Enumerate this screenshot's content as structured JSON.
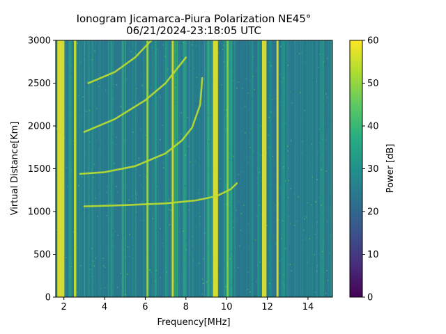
{
  "chart_data": {
    "type": "heatmap",
    "title_line1": "Ionogram Jicamarca-Piura Polarization NE45°",
    "title_line2": "06/21/2024-23:18:05 UTC",
    "xlabel": "Frequency[MHz]",
    "ylabel": "Virtual Distance[Km]",
    "xlim": [
      1.6,
      15.2
    ],
    "ylim": [
      0,
      3000
    ],
    "x_ticks": [
      2,
      4,
      6,
      8,
      10,
      12,
      14
    ],
    "y_ticks": [
      0,
      500,
      1000,
      1500,
      2000,
      2500,
      3000
    ],
    "colorbar": {
      "label": "Power [dB]",
      "colormap": "viridis",
      "range": [
        0,
        60
      ],
      "ticks": [
        0,
        10,
        20,
        30,
        40,
        50,
        60
      ]
    },
    "background_level_db": 33,
    "interference_bands_mhz": [
      {
        "f": 1.85,
        "width": 0.35,
        "db": 58
      },
      {
        "f": 2.55,
        "width": 0.12,
        "db": 56
      },
      {
        "f": 6.1,
        "width": 0.08,
        "db": 52
      },
      {
        "f": 7.35,
        "width": 0.1,
        "db": 57
      },
      {
        "f": 9.45,
        "width": 0.25,
        "db": 58
      },
      {
        "f": 10.05,
        "width": 0.08,
        "db": 50
      },
      {
        "f": 11.85,
        "width": 0.22,
        "db": 58
      },
      {
        "f": 12.5,
        "width": 0.1,
        "db": 58
      }
    ],
    "series": [
      {
        "hop": 1,
        "points": [
          [
            3.0,
            1060
          ],
          [
            5.0,
            1075
          ],
          [
            7.0,
            1095
          ],
          [
            8.5,
            1130
          ],
          [
            9.5,
            1180
          ],
          [
            10.2,
            1260
          ],
          [
            10.5,
            1330
          ]
        ]
      },
      {
        "hop": 2,
        "points": [
          [
            2.8,
            1440
          ],
          [
            4.0,
            1460
          ],
          [
            5.5,
            1530
          ],
          [
            7.0,
            1680
          ],
          [
            7.8,
            1830
          ],
          [
            8.3,
            1980
          ],
          [
            8.7,
            2250
          ],
          [
            8.8,
            2560
          ]
        ]
      },
      {
        "hop": 3,
        "points": [
          [
            3.0,
            1930
          ],
          [
            4.5,
            2080
          ],
          [
            6.0,
            2300
          ],
          [
            7.0,
            2500
          ],
          [
            8.0,
            2800
          ]
        ]
      },
      {
        "hop": 4,
        "points": [
          [
            3.2,
            2500
          ],
          [
            4.5,
            2630
          ],
          [
            5.5,
            2800
          ],
          [
            6.3,
            3000
          ]
        ]
      }
    ]
  }
}
